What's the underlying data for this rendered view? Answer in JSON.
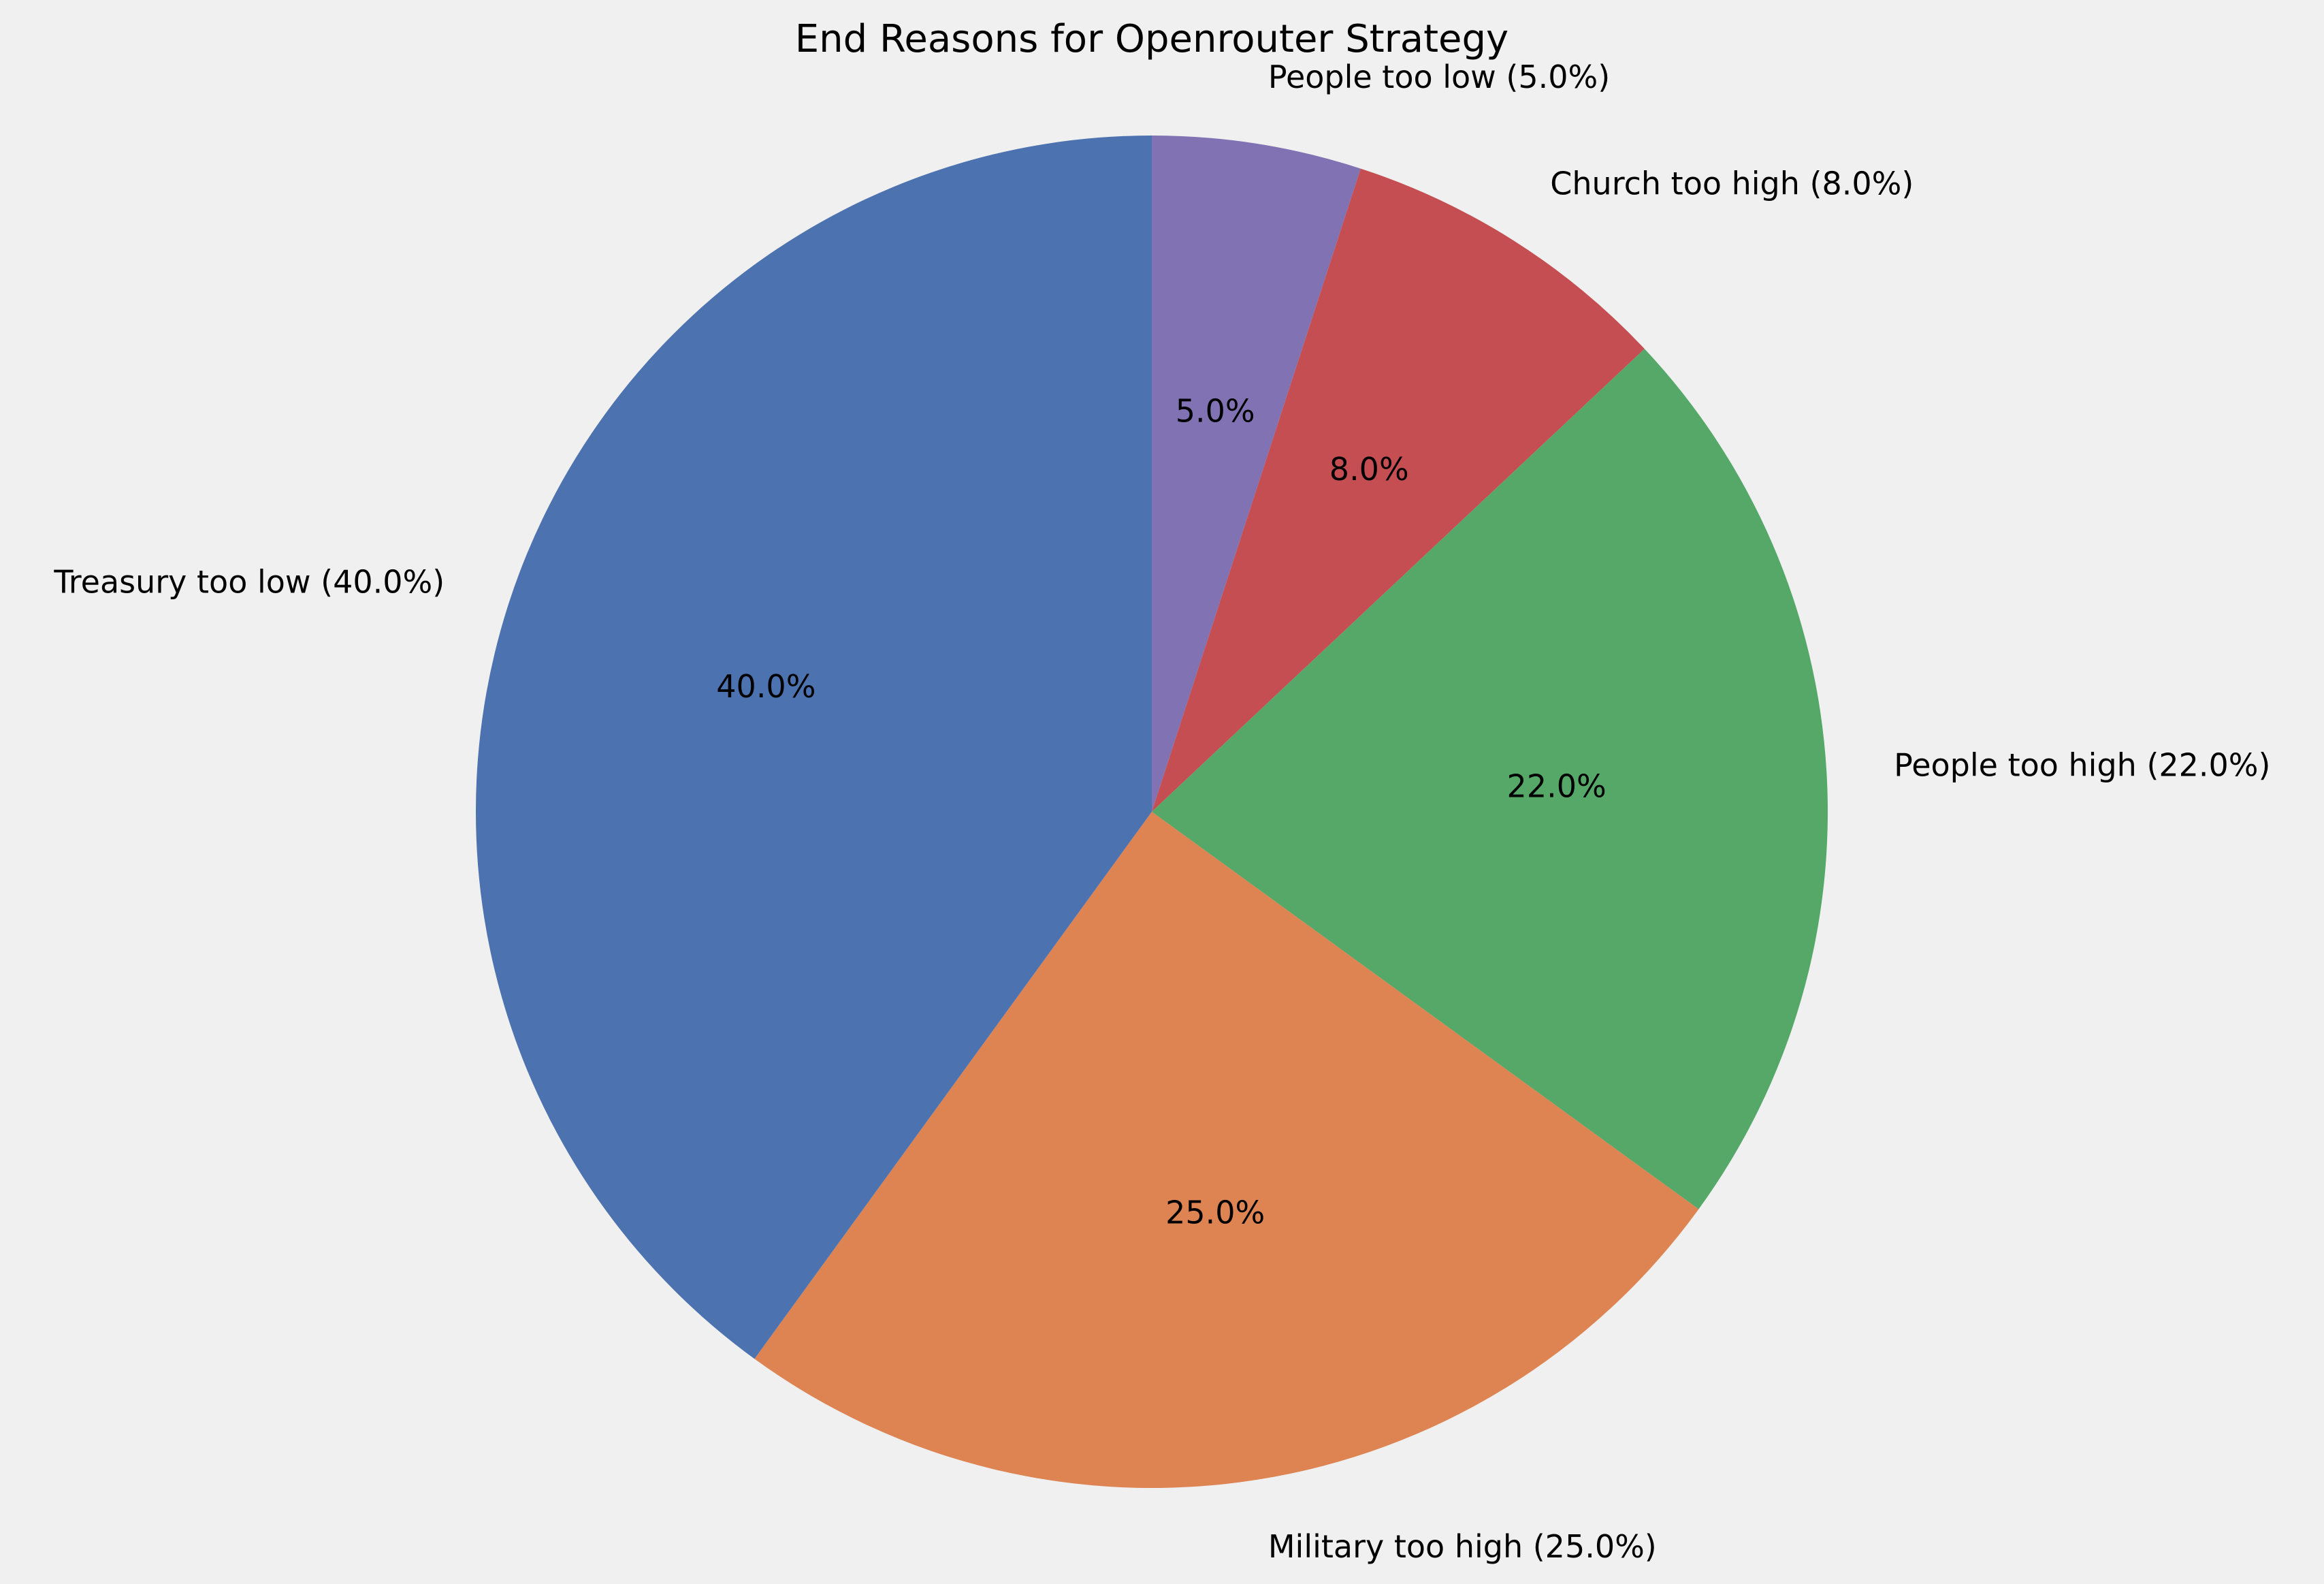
{
  "chart_data": {
    "type": "pie",
    "title": "End Reasons for Openrouter Strategy",
    "start_angle_deg": 90,
    "direction": "clockwise",
    "slices": [
      {
        "label": "People too low (5.0%)",
        "value": 5.0,
        "pct_text": "5.0%",
        "color": "#8172b3"
      },
      {
        "label": "Church too high (8.0%)",
        "value": 8.0,
        "pct_text": "8.0%",
        "color": "#c44e52"
      },
      {
        "label": "People too high (22.0%)",
        "value": 22.0,
        "pct_text": "22.0%",
        "color": "#55a868"
      },
      {
        "label": "Military too high (25.0%)",
        "value": 25.0,
        "pct_text": "25.0%",
        "color": "#dd8452"
      },
      {
        "label": "Treasury too low (40.0%)",
        "value": 40.0,
        "pct_text": "40.0%",
        "color": "#4c72b0"
      }
    ]
  }
}
